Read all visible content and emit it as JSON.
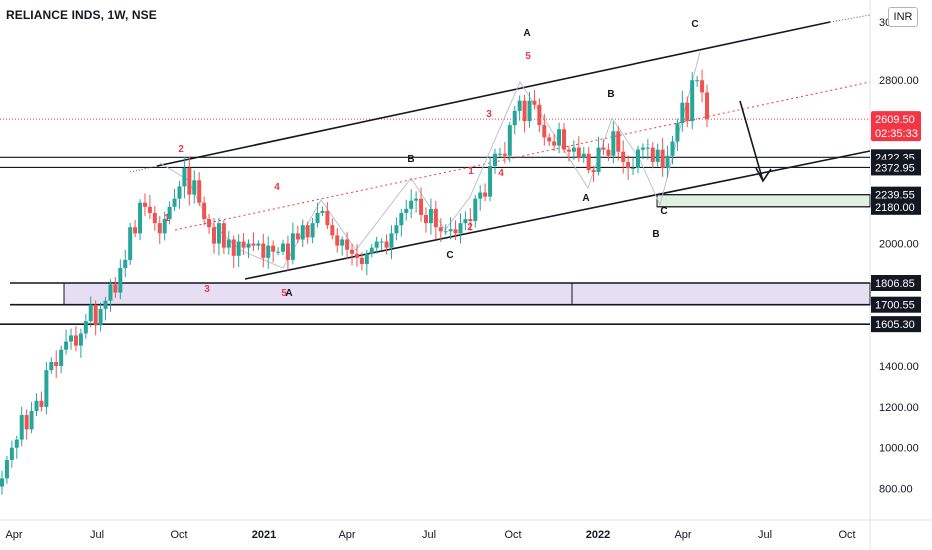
{
  "chart_data": {
    "type": "candlestick",
    "title": "RELIANCE INDS, 1W, NSE",
    "currency": "INR",
    "ylim": [
      695,
      3095
    ],
    "price_ticks": [
      800,
      1000,
      1200,
      1400,
      2000,
      2800
    ],
    "price_tick_labels": [
      "800.00",
      "1000.00",
      "1200.00",
      "1400.00",
      "2000.00",
      "2800.00"
    ],
    "top_tick_label": "30",
    "time_labels": [
      "Apr",
      "Jul",
      "Oct",
      "2021",
      "Apr",
      "Jul",
      "Oct",
      "2022",
      "Apr",
      "Jul",
      "Oct"
    ],
    "time_label_bold": [
      false,
      false,
      false,
      true,
      false,
      false,
      false,
      true,
      false,
      false,
      false
    ],
    "last_price": {
      "value": 2609.5,
      "label": "2609.50",
      "countdown": "02:35:33",
      "color": "#f23645"
    },
    "levels": [
      {
        "value": 2422.35,
        "label": "2422.35"
      },
      {
        "value": 2372.95,
        "label": "2372.95"
      },
      {
        "value": 2239.55,
        "label": "2239.55"
      },
      {
        "value": 2180.0,
        "label": "2180.00"
      },
      {
        "value": 1806.85,
        "label": "1806.85"
      },
      {
        "value": 1700.55,
        "label": "1700.55"
      },
      {
        "value": 1605.3,
        "label": "1605.30"
      }
    ],
    "zones": [
      {
        "from": 1700.55,
        "to": 1806.85,
        "color": "#d1c4e9"
      },
      {
        "from": 2180.0,
        "to": 2239.55,
        "color": "#c8e6c9"
      }
    ],
    "colors": {
      "up": "#26a69a",
      "down": "#ef5350",
      "wave_label": "#f23645",
      "level_label_bg": "#131722"
    },
    "wave_labels": [
      {
        "text": "2",
        "color": "red"
      },
      {
        "text": "1",
        "color": "red"
      },
      {
        "text": "4",
        "color": "red"
      },
      {
        "text": "3",
        "color": "red"
      },
      {
        "text": "5",
        "color": "red"
      },
      {
        "text": "A",
        "color": "black"
      },
      {
        "text": "B",
        "color": "black"
      },
      {
        "text": "2",
        "color": "red"
      },
      {
        "text": "C",
        "color": "black"
      },
      {
        "text": "1",
        "color": "red"
      },
      {
        "text": "3",
        "color": "red"
      },
      {
        "text": "4",
        "color": "red"
      },
      {
        "text": "5",
        "color": "red"
      },
      {
        "text": "A",
        "color": "black"
      },
      {
        "text": "B",
        "color": "black"
      },
      {
        "text": "A",
        "color": "black"
      },
      {
        "text": "C",
        "color": "black"
      },
      {
        "text": "B",
        "color": "black"
      },
      {
        "text": "C",
        "color": "black"
      }
    ]
  }
}
